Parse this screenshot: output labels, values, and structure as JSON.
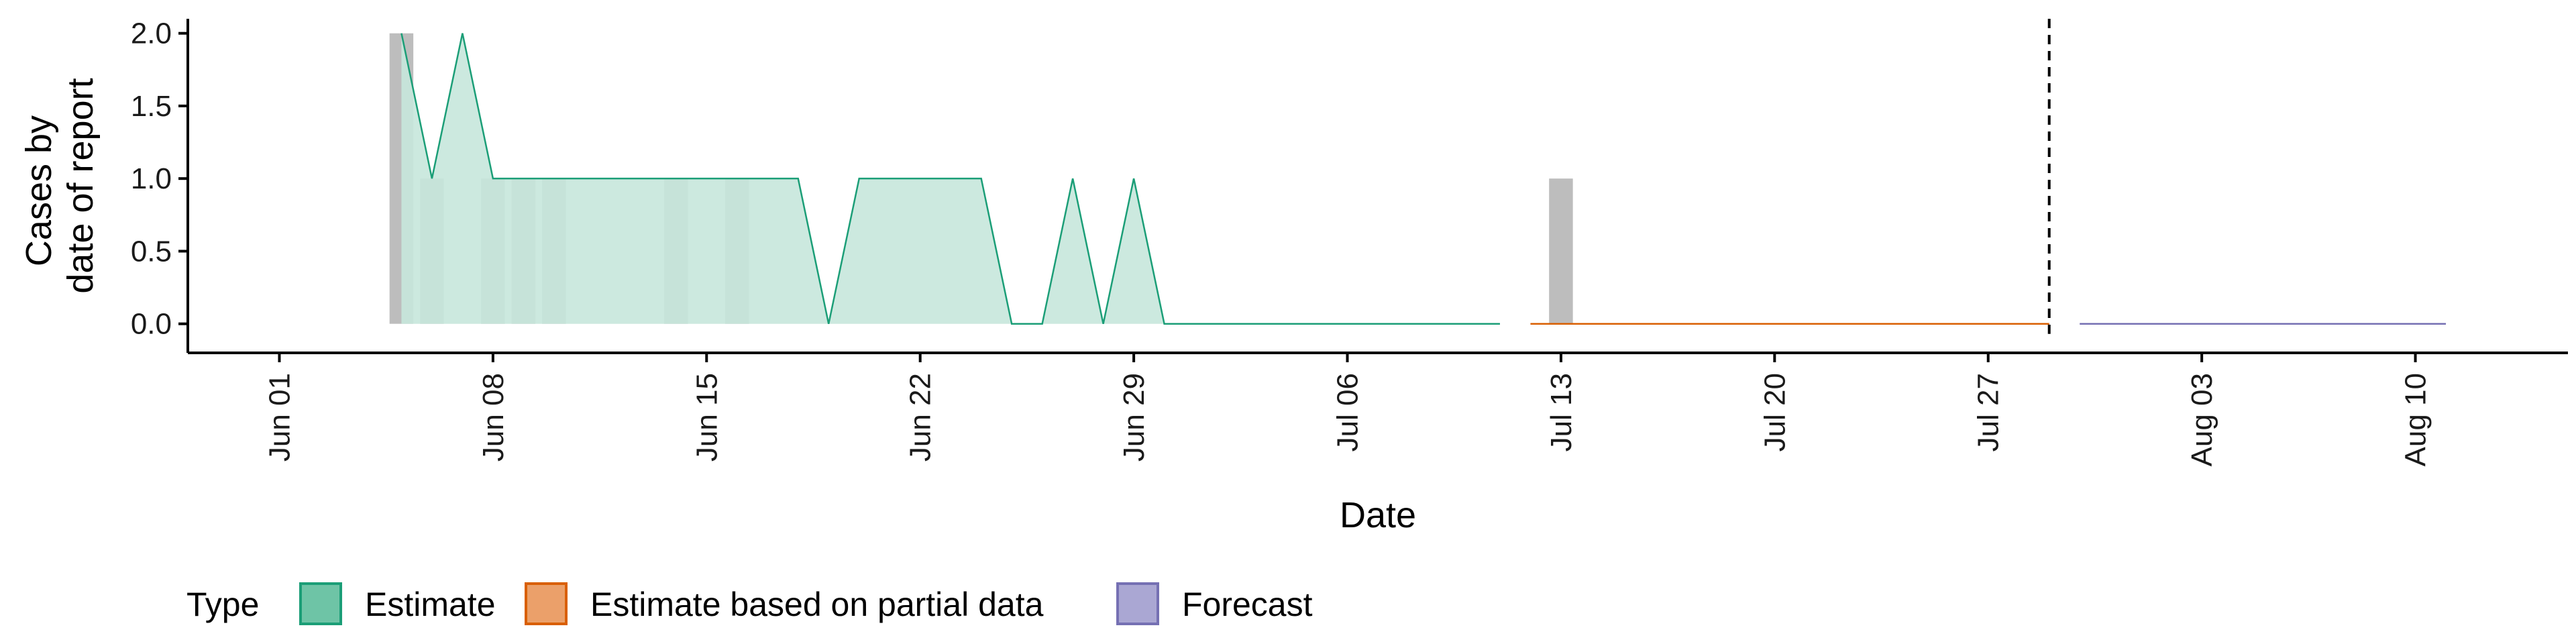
{
  "chart_data": {
    "type": "area",
    "xlabel": "Date",
    "ylabel_lines": [
      "Cases by",
      "date of report"
    ],
    "xlim": [
      "2020-05-29",
      "2020-08-15"
    ],
    "ylim": [
      -0.2,
      2.1
    ],
    "grid": false,
    "y_ticks": [
      0.0,
      0.5,
      1.0,
      1.5,
      2.0
    ],
    "y_tick_labels": [
      "0.0",
      "0.5",
      "1.0",
      "1.5",
      "2.0"
    ],
    "x_ticks": [
      "2020-06-01",
      "2020-06-08",
      "2020-06-15",
      "2020-06-22",
      "2020-06-29",
      "2020-07-06",
      "2020-07-13",
      "2020-07-20",
      "2020-07-27",
      "2020-08-03",
      "2020-08-10"
    ],
    "x_tick_labels": [
      "Jun 01",
      "Jun 08",
      "Jun 15",
      "Jun 22",
      "Jun 29",
      "Jul 06",
      "Jul 13",
      "Jul 20",
      "Jul 27",
      "Aug 03",
      "Aug 10"
    ],
    "reported_cases": {
      "dates": [
        "2020-06-05",
        "2020-06-06",
        "2020-06-08",
        "2020-06-09",
        "2020-06-10",
        "2020-06-14",
        "2020-06-16",
        "2020-07-13"
      ],
      "values": [
        2,
        1,
        1,
        1,
        1,
        1,
        1,
        1
      ],
      "color": "#bdbdbd"
    },
    "series": [
      {
        "name": "Estimate",
        "color": "#1b9e77",
        "fill": "#c6e7dc",
        "dates": [
          "2020-06-05",
          "2020-06-06",
          "2020-06-07",
          "2020-06-08",
          "2020-06-09",
          "2020-06-18",
          "2020-06-19",
          "2020-06-20",
          "2020-06-24",
          "2020-06-25",
          "2020-06-26",
          "2020-06-27",
          "2020-06-28",
          "2020-06-29",
          "2020-06-30",
          "2020-07-11"
        ],
        "values": [
          2,
          1,
          2,
          1,
          1,
          1,
          0,
          1,
          1,
          0,
          0,
          1,
          0,
          1,
          0,
          0
        ]
      },
      {
        "name": "Estimate based on partial data",
        "color": "#d95f02",
        "dates": [
          "2020-07-12",
          "2020-07-29"
        ],
        "values": [
          0,
          0
        ]
      },
      {
        "name": "Forecast",
        "color": "#7570b3",
        "dates": [
          "2020-07-30",
          "2020-08-11"
        ],
        "values": [
          0,
          0
        ]
      }
    ],
    "vline": {
      "date": "2020-07-29",
      "style": "dashed"
    },
    "legend": {
      "title": "Type",
      "position": "bottom",
      "items": [
        {
          "label": "Estimate",
          "fill": "#6ec4a6",
          "stroke": "#1b9e77"
        },
        {
          "label": "Estimate based on partial data",
          "fill": "#eba06a",
          "stroke": "#d95f02"
        },
        {
          "label": "Forecast",
          "fill": "#aaa7d3",
          "stroke": "#7570b3"
        }
      ]
    }
  }
}
